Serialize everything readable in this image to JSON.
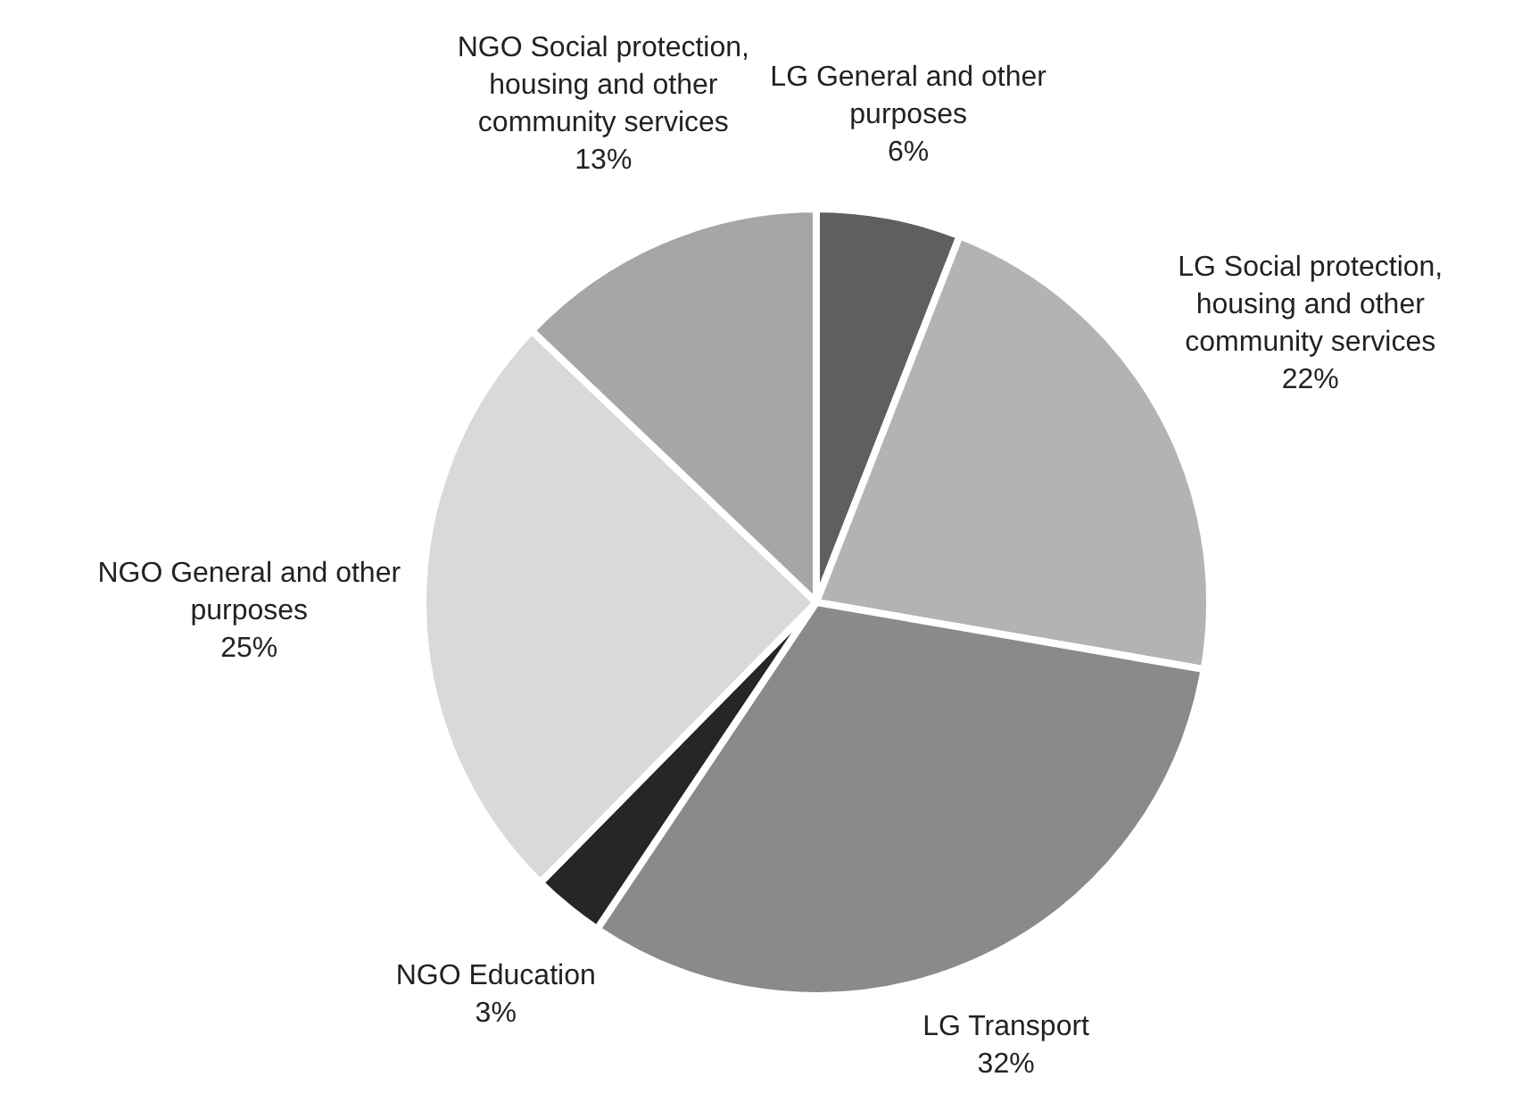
{
  "chart_data": {
    "type": "pie",
    "categories": [
      "LG General and other purposes",
      "LG Social protection, housing and other community services",
      "LG Transport",
      "NGO Education",
      "NGO General and other purposes",
      "NGO Social protection, housing and other community services"
    ],
    "values": [
      6,
      22,
      32,
      3,
      25,
      13
    ],
    "value_labels": [
      "6%",
      "22%",
      "32%",
      "3%",
      "25%",
      "13%"
    ],
    "colors": [
      "#5f5f5f",
      "#b3b3b3",
      "#8a8a8a",
      "#262626",
      "#d9d9d9",
      "#a6a6a6"
    ],
    "legend": false
  }
}
